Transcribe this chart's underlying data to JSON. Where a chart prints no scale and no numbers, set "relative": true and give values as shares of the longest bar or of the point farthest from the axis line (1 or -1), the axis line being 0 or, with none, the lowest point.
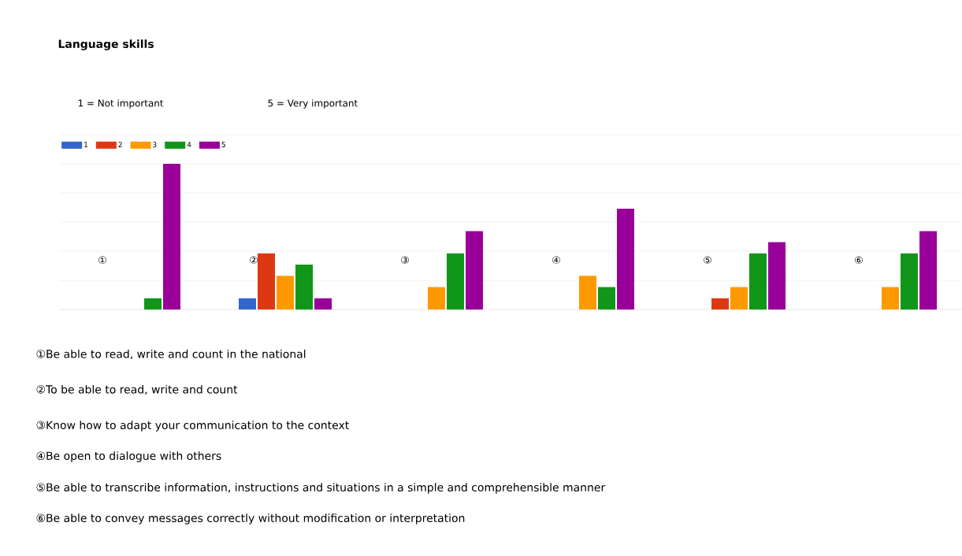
{
  "chart_data": {
    "type": "bar",
    "title": "Language skills",
    "subtitle": "1 = Not important",
    "annotations": [
      "5 = Very important",
      "①Be able to read, write and count in the national",
      "②To be able to read, write and count",
      "③Know how to adapt your communication to the context",
      "④Be open to dialogue with others",
      "⑤Be able to transcribe information, instructions and situations in a simple and comprehensible manner",
      "⑥Be able to convey messages correctly without modification or interpretation"
    ],
    "categories": [
      "①",
      "②",
      "③",
      "④",
      "⑤",
      "⑥"
    ],
    "relative": true,
    "grid": "y",
    "legend": "top left",
    "series": [
      {
        "name": "1",
        "color": "#3366cc",
        "values": [
          0,
          0.077,
          0,
          0,
          0,
          0
        ]
      },
      {
        "name": "2",
        "color": "#dc3912",
        "values": [
          0,
          0.385,
          0,
          0,
          0.077,
          0
        ]
      },
      {
        "name": "3",
        "color": "#ff9900",
        "values": [
          0,
          0.231,
          0.154,
          0.231,
          0.154,
          0.154
        ]
      },
      {
        "name": "4",
        "color": "#109618",
        "values": [
          0.077,
          0.308,
          0.385,
          0.154,
          0.385,
          0.385
        ]
      },
      {
        "name": "5",
        "color": "#990099",
        "values": [
          1,
          0.077,
          0.538,
          0.692,
          0.462,
          0.538
        ]
      }
    ]
  }
}
